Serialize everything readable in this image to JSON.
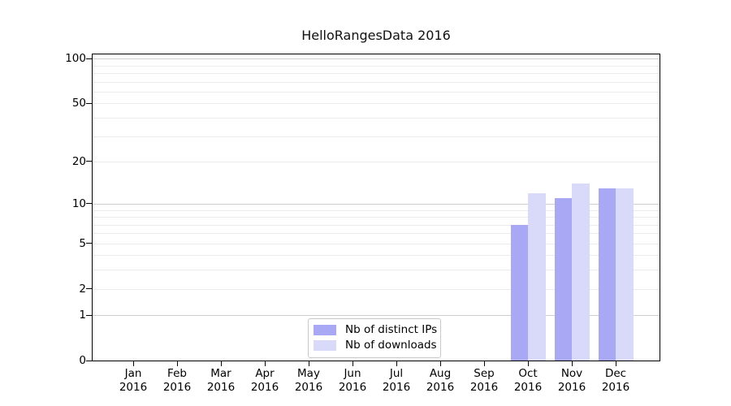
{
  "chart_data": {
    "type": "bar",
    "title": "HelloRangesData 2016",
    "categories": [
      "Jan",
      "Feb",
      "Mar",
      "Apr",
      "May",
      "Jun",
      "Jul",
      "Aug",
      "Sep",
      "Oct",
      "Nov",
      "Dec"
    ],
    "category_year": "2016",
    "series": [
      {
        "name": "Nb of distinct IPs",
        "color": "#a8a8f5",
        "values": [
          0,
          0,
          0,
          0,
          0,
          0,
          0,
          0,
          0,
          7,
          11,
          13
        ]
      },
      {
        "name": "Nb of downloads",
        "color": "#d9d9fa",
        "values": [
          0,
          0,
          0,
          0,
          0,
          0,
          0,
          0,
          0,
          12,
          14,
          13
        ]
      }
    ],
    "yscale": "log1p",
    "ylim": [
      0,
      108
    ],
    "y_ticks": [
      0,
      1,
      2,
      5,
      10,
      20,
      50,
      100
    ],
    "major_gridlines": [
      1,
      10,
      100
    ],
    "minor_gridlines": [
      2,
      3,
      4,
      5,
      6,
      7,
      8,
      9,
      20,
      30,
      40,
      50,
      60,
      70,
      80,
      90
    ],
    "grid": "on",
    "legend_position": "lower center",
    "colors": {
      "grid_minor": "#ebebeb",
      "grid_major": "#cfcfcf",
      "axis": "#000000",
      "background": "#ffffff"
    }
  }
}
